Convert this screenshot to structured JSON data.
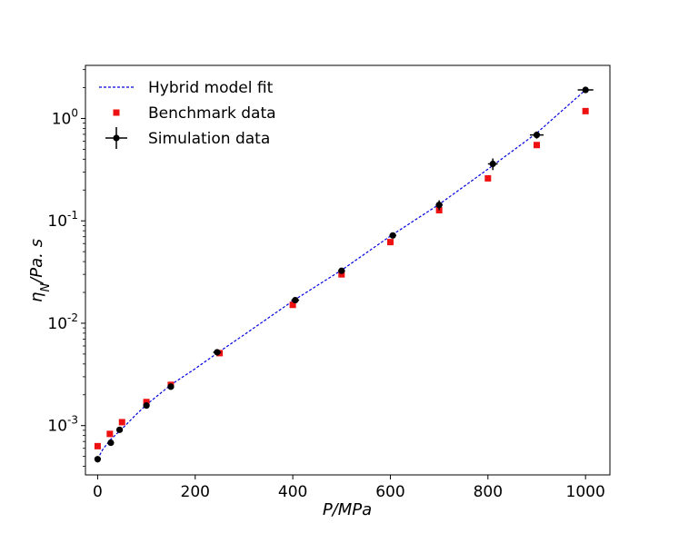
{
  "chart_data": {
    "type": "scatter",
    "xlabel": "P/MPa",
    "ylabel_main": "η",
    "ylabel_sub": "N",
    "ylabel_rest": "/Pa. s",
    "x_range": [
      -25,
      1050
    ],
    "y_range": [
      0.00033,
      3.3
    ],
    "y_scale": "log",
    "x_ticks": [
      0,
      200,
      400,
      600,
      800,
      1000
    ],
    "y_ticks": [
      {
        "value": 0.001,
        "exp": "-3"
      },
      {
        "value": 0.01,
        "exp": "-2"
      },
      {
        "value": 0.1,
        "exp": "-1"
      },
      {
        "value": 1.0,
        "exp": "0"
      }
    ],
    "y_tick_base": "10",
    "legend_position": "upper-left",
    "legend": [
      {
        "label": "Hybrid model fit",
        "style": "dashed-line",
        "color": "#0000dd"
      },
      {
        "label": "Benchmark data",
        "style": "square",
        "color": "#ee1111"
      },
      {
        "label": "Simulation data",
        "style": "errorbar-point",
        "color": "#000000"
      }
    ],
    "series": [
      {
        "name": "Hybrid model fit",
        "style": "dashed-line",
        "color": "#0000dd",
        "x": [
          0,
          10,
          25,
          50,
          75,
          100,
          150,
          200,
          250,
          300,
          400,
          500,
          600,
          700,
          800,
          900,
          1000
        ],
        "y": [
          0.00047,
          0.00058,
          0.00072,
          0.00093,
          0.00123,
          0.0016,
          0.0025,
          0.0036,
          0.0053,
          0.0077,
          0.0165,
          0.033,
          0.071,
          0.145,
          0.32,
          0.72,
          1.9
        ]
      },
      {
        "name": "Benchmark data",
        "style": "square",
        "color": "#ee1111",
        "x": [
          0,
          25,
          50,
          100,
          150,
          250,
          400,
          500,
          600,
          700,
          800,
          900,
          1000
        ],
        "y": [
          0.00063,
          0.00083,
          0.00108,
          0.0017,
          0.0025,
          0.0051,
          0.0151,
          0.03,
          0.062,
          0.127,
          0.26,
          0.55,
          1.18
        ]
      },
      {
        "name": "Simulation data",
        "style": "errorbar-point",
        "color": "#000000",
        "x": [
          0,
          27,
          45,
          100,
          150,
          245,
          405,
          500,
          605,
          700,
          810,
          900,
          1000
        ],
        "y": [
          0.00047,
          0.00068,
          0.00091,
          0.00157,
          0.0024,
          0.0052,
          0.0168,
          0.0325,
          0.072,
          0.143,
          0.36,
          0.69,
          1.9
        ],
        "x_err": [
          2,
          4,
          4,
          4,
          4,
          8,
          8,
          7,
          7,
          7,
          10,
          14,
          16
        ],
        "y_err_frac": [
          0.07,
          0.04,
          0.04,
          0.04,
          0.05,
          0.04,
          0.04,
          0.05,
          0.04,
          0.11,
          0.13,
          0.08,
          0.06
        ]
      }
    ]
  }
}
